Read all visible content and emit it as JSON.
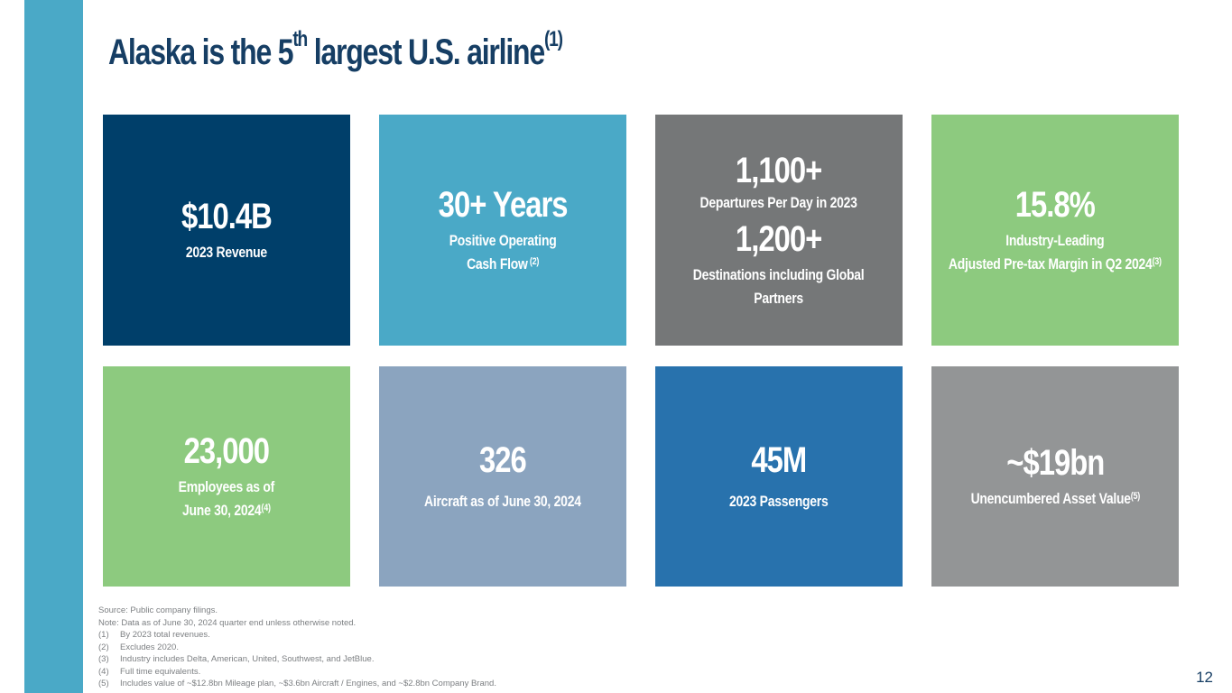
{
  "slide": {
    "title": {
      "main": "Alaska is the 5",
      "ordinal": "th",
      "rest": " largest U.S. airline",
      "ref": "(1)"
    },
    "colors": {
      "accent_bar": "#4aa9c7",
      "title": "#163e64"
    },
    "page_number": "12"
  },
  "tiles": [
    {
      "big": "$10.4B",
      "sub": "2023 Revenue"
    },
    {
      "big": "30+ Years",
      "sub_line1": "Positive Operating",
      "sub_line2": "Cash Flow",
      "ref": " (2)"
    },
    {
      "big1": "1,100+",
      "sub1": "Departures Per Day in 2023",
      "big2": "1,200+",
      "sub2_line1": "Destinations including Global",
      "sub2_line2": "Partners"
    },
    {
      "big": "15.8%",
      "sub_line1": "Industry-Leading",
      "sub_line2": "Adjusted Pre-tax Margin in Q2 2024",
      "ref": "(3)"
    },
    {
      "big": "23,000",
      "sub_line1": "Employees as of",
      "sub_line2": "June 30, 2024",
      "ref": "(4)"
    },
    {
      "big": "326",
      "sub": "Aircraft as of June 30, 2024"
    },
    {
      "big": "45M",
      "sub": "2023 Passengers"
    },
    {
      "big": "~$19bn",
      "sub": "Unencumbered Asset Value",
      "ref": "(5)"
    }
  ],
  "footnotes": {
    "source": "Source: Public company filings.",
    "note": "Note: Data as of June 30, 2024 quarter end unless otherwise noted.",
    "items": [
      {
        "num": "(1)",
        "text": "By 2023 total revenues."
      },
      {
        "num": "(2)",
        "text": "Excludes 2020."
      },
      {
        "num": "(3)",
        "text": "Industry includes Delta, American, United, Southwest, and JetBlue."
      },
      {
        "num": "(4)",
        "text": "Full time equivalents."
      },
      {
        "num": "(5)",
        "text": "Includes value of ~$12.8bn Mileage plan, ~$3.6bn Aircraft / Engines, and ~$2.8bn Company Brand."
      }
    ]
  }
}
